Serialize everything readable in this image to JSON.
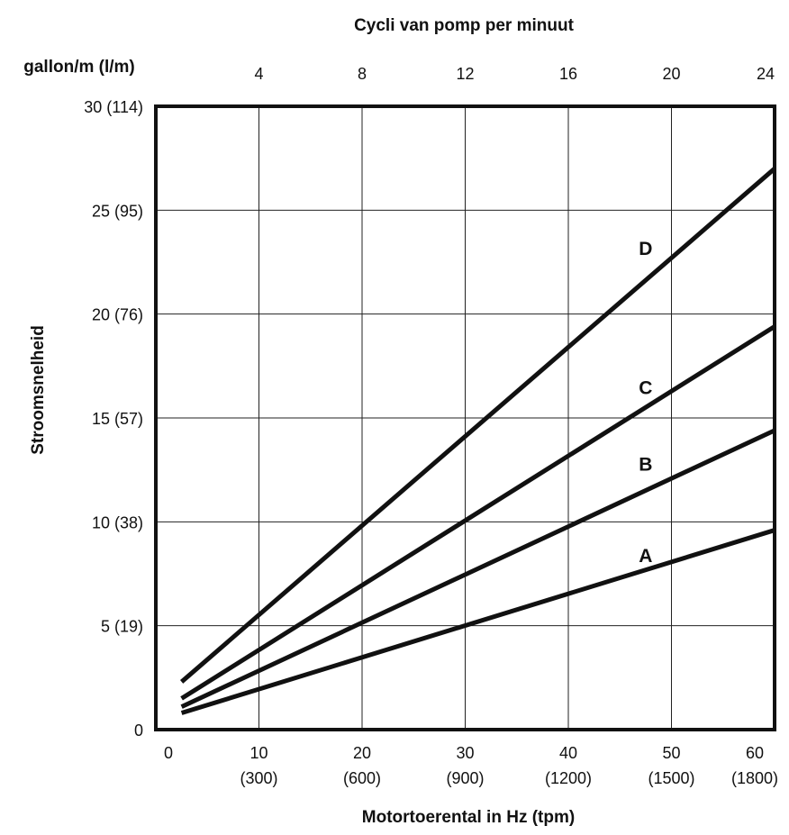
{
  "chart_data": {
    "type": "line",
    "title": "",
    "xlabel": "Motortoerental in Hz (tpm)",
    "ylabel": "Stroomsnelheid",
    "top_axis_label": "Cycli van pomp per minuut",
    "y_unit_label": "gallon/m (l/m)",
    "xlim": [
      0,
      60
    ],
    "ylim": [
      0,
      30
    ],
    "grid": true,
    "legend": "none",
    "x_ticks": [
      {
        "value": 0,
        "label": "0",
        "sublabel": ""
      },
      {
        "value": 10,
        "label": "10",
        "sublabel": "(300)"
      },
      {
        "value": 20,
        "label": "20",
        "sublabel": "(600)"
      },
      {
        "value": 30,
        "label": "30",
        "sublabel": "(900)"
      },
      {
        "value": 40,
        "label": "40",
        "sublabel": "(1200)"
      },
      {
        "value": 50,
        "label": "50",
        "sublabel": "(1500)"
      },
      {
        "value": 60,
        "label": "60",
        "sublabel": "(1800)"
      }
    ],
    "top_ticks": [
      {
        "value": 10,
        "label": "4"
      },
      {
        "value": 20,
        "label": "8"
      },
      {
        "value": 30,
        "label": "12"
      },
      {
        "value": 40,
        "label": "16"
      },
      {
        "value": 50,
        "label": "20"
      },
      {
        "value": 60,
        "label": "24"
      }
    ],
    "y_ticks": [
      {
        "value": 0,
        "label": "0"
      },
      {
        "value": 5,
        "label": "5 (19)"
      },
      {
        "value": 10,
        "label": "10 (38)"
      },
      {
        "value": 15,
        "label": "15 (57)"
      },
      {
        "value": 20,
        "label": "20 (76)"
      },
      {
        "value": 25,
        "label": "25 (95)"
      },
      {
        "value": 30,
        "label": "30 (114)"
      }
    ],
    "series": [
      {
        "name": "A",
        "x": [
          2.5,
          60
        ],
        "y": [
          0.8,
          9.6
        ],
        "label_at": [
          47.5,
          8.4
        ]
      },
      {
        "name": "B",
        "x": [
          2.5,
          60
        ],
        "y": [
          1.1,
          14.4
        ],
        "label_at": [
          47.5,
          12.8
        ]
      },
      {
        "name": "C",
        "x": [
          2.5,
          60
        ],
        "y": [
          1.5,
          19.4
        ],
        "label_at": [
          47.5,
          16.5
        ]
      },
      {
        "name": "D",
        "x": [
          2.5,
          60
        ],
        "y": [
          2.3,
          27.0
        ],
        "label_at": [
          47.5,
          23.2
        ]
      }
    ]
  }
}
